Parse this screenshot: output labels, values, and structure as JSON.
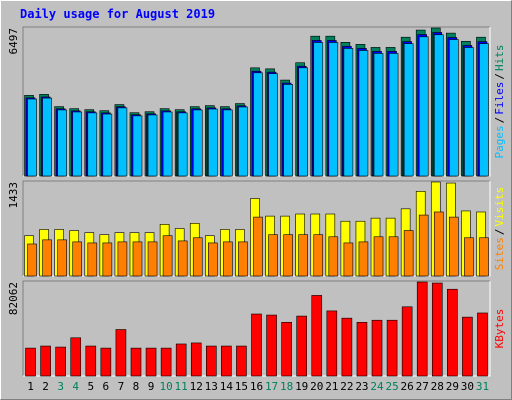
{
  "title": "Daily usage for August 2019",
  "separator": "/",
  "chart_data": [
    {
      "type": "bar",
      "ylim": [
        0,
        6497
      ],
      "yticks": [
        6497
      ],
      "series": [
        {
          "name": "Hits",
          "color": "#00805c",
          "values": [
            3540,
            3584,
            3046,
            2957,
            2912,
            2867,
            3136,
            2778,
            2822,
            2957,
            2912,
            3046,
            3091,
            3046,
            3181,
            4749,
            4704,
            4211,
            4973,
            6138,
            6138,
            5869,
            5779,
            5645,
            5645,
            6093,
            6406,
            6497,
            6272,
            5914,
            6093
          ]
        },
        {
          "name": "Files",
          "color": "#0000ff",
          "values": [
            3430,
            3470,
            2950,
            2860,
            2820,
            2770,
            3040,
            2690,
            2730,
            2860,
            2820,
            2950,
            2990,
            2950,
            3080,
            4600,
            4560,
            4080,
            4820,
            5950,
            5950,
            5690,
            5600,
            5470,
            5470,
            5900,
            6210,
            6300,
            6080,
            5730,
            5900
          ]
        },
        {
          "name": "Pages",
          "color": "#00c0ff",
          "values": [
            3380,
            3420,
            2900,
            2810,
            2770,
            2720,
            2990,
            2640,
            2680,
            2810,
            2770,
            2900,
            2940,
            2900,
            3030,
            4530,
            4490,
            4020,
            4750,
            5860,
            5860,
            5600,
            5510,
            5380,
            5380,
            5810,
            6110,
            6200,
            5990,
            5640,
            5810
          ]
        }
      ]
    },
    {
      "type": "bar",
      "ylim": [
        0,
        1433
      ],
      "yticks": [
        1433
      ],
      "series": [
        {
          "name": "Visits",
          "color": "#ffff00",
          "values": [
            614,
            709,
            709,
            693,
            661,
            630,
            661,
            661,
            661,
            787,
            724,
            803,
            614,
            709,
            709,
            1181,
            913,
            913,
            945,
            945,
            945,
            835,
            835,
            882,
            882,
            1024,
            1291,
            1433,
            1417,
            992,
            976
          ]
        },
        {
          "name": "Sites",
          "color": "#ff8000",
          "values": [
            488,
            551,
            551,
            520,
            504,
            504,
            520,
            520,
            520,
            614,
            535,
            583,
            504,
            520,
            520,
            898,
            630,
            630,
            630,
            630,
            598,
            504,
            520,
            598,
            598,
            693,
            929,
            976,
            898,
            583,
            583
          ]
        }
      ]
    },
    {
      "type": "bar",
      "ylim": [
        0,
        82062
      ],
      "yticks": [
        82062
      ],
      "categories": [
        "1",
        "2",
        "3",
        "4",
        "5",
        "6",
        "7",
        "8",
        "9",
        "10",
        "11",
        "12",
        "13",
        "14",
        "15",
        "16",
        "17",
        "18",
        "19",
        "20",
        "21",
        "22",
        "23",
        "24",
        "25",
        "26",
        "27",
        "28",
        "29",
        "30",
        "31"
      ],
      "category_colors": [
        "#000000",
        "#000000",
        "#00805c",
        "#00805c",
        "#000000",
        "#000000",
        "#000000",
        "#000000",
        "#000000",
        "#00805c",
        "#00805c",
        "#000000",
        "#000000",
        "#000000",
        "#000000",
        "#000000",
        "#00805c",
        "#00805c",
        "#000000",
        "#000000",
        "#000000",
        "#000000",
        "#000000",
        "#00805c",
        "#00805c",
        "#000000",
        "#000000",
        "#000000",
        "#000000",
        "#000000",
        "#00805c"
      ],
      "series": [
        {
          "name": "KBytes",
          "color": "#ff0000",
          "values": [
            24349,
            26152,
            25250,
            33367,
            26152,
            24349,
            40581,
            24349,
            24349,
            24349,
            27956,
            28858,
            26152,
            26152,
            26152,
            54108,
            53206,
            46894,
            52304,
            70340,
            56813,
            50501,
            46894,
            48697,
            48697,
            60421,
            82062,
            81160,
            75751,
            51402,
            55010
          ]
        }
      ]
    }
  ]
}
